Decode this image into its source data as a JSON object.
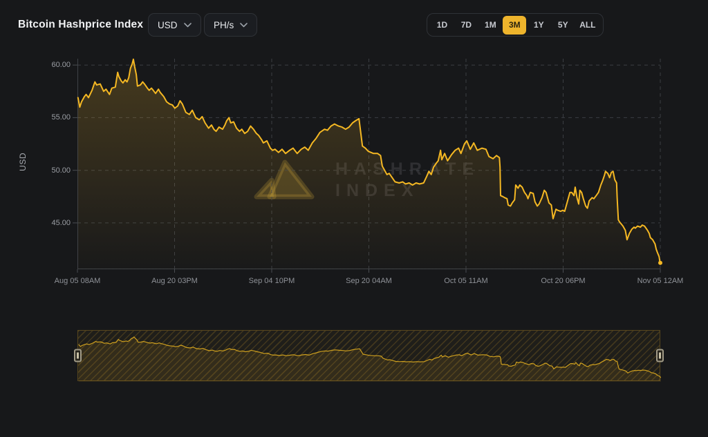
{
  "header": {
    "title": "Bitcoin Hashprice Index",
    "currency_dropdown": {
      "value": "USD",
      "icon": "chevron-down-icon"
    },
    "unit_dropdown": {
      "value": "PH/s",
      "icon": "chevron-down-icon"
    },
    "range_buttons": [
      {
        "label": "1D",
        "active": false
      },
      {
        "label": "7D",
        "active": false
      },
      {
        "label": "1M",
        "active": false
      },
      {
        "label": "3M",
        "active": true
      },
      {
        "label": "1Y",
        "active": false
      },
      {
        "label": "5Y",
        "active": false
      },
      {
        "label": "ALL",
        "active": false
      }
    ]
  },
  "watermark": {
    "line1": "HASHRATE",
    "line2": "INDEX",
    "logo": "hashrate-index-logo"
  },
  "colors": {
    "page_bg": "#17181A",
    "accent": "#EEB42C",
    "line": "#F5B823",
    "area_fill_top": "rgba(238,180,44,0.22)",
    "area_fill_bottom": "rgba(238,180,44,0.01)",
    "grid": "#3B3E43",
    "text_primary": "#F2F3F5",
    "text_muted": "#9B9EA4",
    "range_active_text": "#2A230F"
  },
  "chart_data": {
    "type": "line",
    "title": "Bitcoin Hashprice Index",
    "ylabel": "USD",
    "ylim": [
      40.6,
      60.6
    ],
    "grid": true,
    "y_ticks": [
      {
        "value": 60,
        "label": "60.00"
      },
      {
        "value": 55,
        "label": "55.00"
      },
      {
        "value": 50,
        "label": "50.00"
      },
      {
        "value": 45,
        "label": "45.00"
      }
    ],
    "x_ticks": [
      "Aug 05 08AM",
      "Aug 20 03PM",
      "Sep 04 10PM",
      "Sep 20 04AM",
      "Oct 05 11AM",
      "Oct 20 06PM",
      "Nov 05 12AM"
    ],
    "end_marker": true,
    "series": [
      {
        "name": "hashprice-usd-per-phs",
        "points": [
          [
            0.001,
            56.9
          ],
          [
            0.004,
            56.0
          ],
          [
            0.007,
            56.5
          ],
          [
            0.012,
            57.0
          ],
          [
            0.015,
            57.2
          ],
          [
            0.019,
            56.9
          ],
          [
            0.025,
            57.6
          ],
          [
            0.03,
            58.4
          ],
          [
            0.033,
            58.1
          ],
          [
            0.039,
            58.2
          ],
          [
            0.045,
            57.5
          ],
          [
            0.049,
            57.7
          ],
          [
            0.055,
            57.2
          ],
          [
            0.059,
            57.8
          ],
          [
            0.065,
            57.9
          ],
          [
            0.069,
            59.3
          ],
          [
            0.071,
            58.9
          ],
          [
            0.075,
            58.5
          ],
          [
            0.078,
            58.3
          ],
          [
            0.082,
            58.6
          ],
          [
            0.085,
            58.4
          ],
          [
            0.088,
            58.8
          ],
          [
            0.091,
            59.7
          ],
          [
            0.094,
            60.1
          ],
          [
            0.096,
            60.55
          ],
          [
            0.098,
            59.9
          ],
          [
            0.101,
            59.1
          ],
          [
            0.103,
            58.0
          ],
          [
            0.108,
            58.1
          ],
          [
            0.112,
            58.4
          ],
          [
            0.115,
            58.2
          ],
          [
            0.12,
            57.8
          ],
          [
            0.123,
            57.6
          ],
          [
            0.127,
            57.8
          ],
          [
            0.13,
            57.6
          ],
          [
            0.134,
            57.3
          ],
          [
            0.139,
            57.7
          ],
          [
            0.142,
            57.4
          ],
          [
            0.148,
            57.0
          ],
          [
            0.153,
            56.5
          ],
          [
            0.158,
            56.3
          ],
          [
            0.163,
            56.2
          ],
          [
            0.167,
            55.9
          ],
          [
            0.172,
            56.1
          ],
          [
            0.176,
            56.6
          ],
          [
            0.18,
            56.3
          ],
          [
            0.186,
            55.5
          ],
          [
            0.192,
            55.3
          ],
          [
            0.197,
            55.7
          ],
          [
            0.203,
            55.0
          ],
          [
            0.209,
            54.8
          ],
          [
            0.214,
            55.1
          ],
          [
            0.219,
            54.5
          ],
          [
            0.225,
            54.0
          ],
          [
            0.23,
            54.3
          ],
          [
            0.234,
            53.9
          ],
          [
            0.238,
            53.7
          ],
          [
            0.243,
            54.1
          ],
          [
            0.249,
            53.9
          ],
          [
            0.253,
            54.3
          ],
          [
            0.256,
            54.7
          ],
          [
            0.26,
            55.0
          ],
          [
            0.263,
            54.5
          ],
          [
            0.268,
            54.6
          ],
          [
            0.273,
            54.0
          ],
          [
            0.278,
            53.7
          ],
          [
            0.282,
            53.9
          ],
          [
            0.287,
            53.5
          ],
          [
            0.292,
            53.7
          ],
          [
            0.297,
            54.2
          ],
          [
            0.302,
            53.9
          ],
          [
            0.307,
            53.5
          ],
          [
            0.311,
            53.3
          ],
          [
            0.316,
            52.9
          ],
          [
            0.319,
            52.6
          ],
          [
            0.325,
            52.8
          ],
          [
            0.331,
            52.1
          ],
          [
            0.335,
            51.9
          ],
          [
            0.339,
            52.0
          ],
          [
            0.345,
            51.7
          ],
          [
            0.351,
            52.0
          ],
          [
            0.357,
            51.6
          ],
          [
            0.364,
            51.9
          ],
          [
            0.37,
            52.1
          ],
          [
            0.377,
            51.6
          ],
          [
            0.384,
            52.0
          ],
          [
            0.39,
            52.2
          ],
          [
            0.396,
            51.9
          ],
          [
            0.403,
            52.6
          ],
          [
            0.409,
            53.0
          ],
          [
            0.416,
            53.6
          ],
          [
            0.424,
            53.9
          ],
          [
            0.429,
            53.8
          ],
          [
            0.435,
            54.2
          ],
          [
            0.441,
            54.4
          ],
          [
            0.448,
            54.2
          ],
          [
            0.454,
            54.1
          ],
          [
            0.46,
            53.9
          ],
          [
            0.466,
            54.1
          ],
          [
            0.472,
            54.5
          ],
          [
            0.477,
            54.7
          ],
          [
            0.483,
            54.9
          ],
          [
            0.486,
            53.6
          ],
          [
            0.489,
            52.3
          ],
          [
            0.494,
            52.1
          ],
          [
            0.499,
            51.8
          ],
          [
            0.508,
            51.6
          ],
          [
            0.515,
            51.6
          ],
          [
            0.52,
            51.4
          ],
          [
            0.523,
            50.4
          ],
          [
            0.528,
            49.9
          ],
          [
            0.531,
            49.6
          ],
          [
            0.535,
            49.7
          ],
          [
            0.54,
            49.3
          ],
          [
            0.545,
            48.9
          ],
          [
            0.552,
            48.8
          ],
          [
            0.558,
            48.9
          ],
          [
            0.563,
            48.7
          ],
          [
            0.569,
            48.8
          ],
          [
            0.575,
            48.6
          ],
          [
            0.581,
            48.8
          ],
          [
            0.587,
            48.7
          ],
          [
            0.594,
            48.8
          ],
          [
            0.599,
            49.4
          ],
          [
            0.603,
            49.9
          ],
          [
            0.607,
            49.6
          ],
          [
            0.611,
            50.3
          ],
          [
            0.616,
            50.7
          ],
          [
            0.619,
            50.9
          ],
          [
            0.623,
            51.9
          ],
          [
            0.625,
            51.0
          ],
          [
            0.63,
            51.6
          ],
          [
            0.635,
            50.9
          ],
          [
            0.642,
            51.5
          ],
          [
            0.648,
            51.9
          ],
          [
            0.654,
            52.1
          ],
          [
            0.658,
            51.6
          ],
          [
            0.664,
            52.5
          ],
          [
            0.668,
            52.8
          ],
          [
            0.674,
            52.0
          ],
          [
            0.68,
            52.6
          ],
          [
            0.686,
            51.9
          ],
          [
            0.694,
            52.1
          ],
          [
            0.701,
            52.0
          ],
          [
            0.706,
            51.3
          ],
          [
            0.713,
            51.1
          ],
          [
            0.719,
            51.4
          ],
          [
            0.724,
            51.2
          ],
          [
            0.725,
            50.3
          ],
          [
            0.726,
            47.6
          ],
          [
            0.73,
            47.5
          ],
          [
            0.733,
            47.4
          ],
          [
            0.737,
            47.3
          ],
          [
            0.739,
            46.7
          ],
          [
            0.743,
            46.6
          ],
          [
            0.746,
            46.9
          ],
          [
            0.75,
            47.2
          ],
          [
            0.752,
            48.6
          ],
          [
            0.756,
            48.3
          ],
          [
            0.759,
            48.6
          ],
          [
            0.763,
            48.4
          ],
          [
            0.767,
            47.9
          ],
          [
            0.771,
            47.6
          ],
          [
            0.773,
            47.3
          ],
          [
            0.777,
            47.9
          ],
          [
            0.782,
            47.8
          ],
          [
            0.785,
            47.0
          ],
          [
            0.789,
            46.6
          ],
          [
            0.792,
            46.8
          ],
          [
            0.797,
            47.4
          ],
          [
            0.801,
            48.1
          ],
          [
            0.804,
            47.9
          ],
          [
            0.809,
            46.9
          ],
          [
            0.813,
            46.7
          ],
          [
            0.816,
            45.4
          ],
          [
            0.821,
            46.3
          ],
          [
            0.824,
            46.2
          ],
          [
            0.829,
            46.1
          ],
          [
            0.833,
            46.2
          ],
          [
            0.836,
            46.1
          ],
          [
            0.84,
            46.9
          ],
          [
            0.845,
            47.9
          ],
          [
            0.848,
            47.9
          ],
          [
            0.852,
            47.6
          ],
          [
            0.854,
            48.4
          ],
          [
            0.857,
            47.4
          ],
          [
            0.86,
            46.8
          ],
          [
            0.862,
            48.1
          ],
          [
            0.865,
            47.9
          ],
          [
            0.868,
            47.3
          ],
          [
            0.872,
            46.6
          ],
          [
            0.875,
            46.4
          ],
          [
            0.878,
            47.1
          ],
          [
            0.883,
            47.4
          ],
          [
            0.886,
            47.3
          ],
          [
            0.89,
            47.6
          ],
          [
            0.894,
            47.9
          ],
          [
            0.898,
            48.6
          ],
          [
            0.901,
            49.0
          ],
          [
            0.904,
            49.5
          ],
          [
            0.906,
            49.9
          ],
          [
            0.91,
            49.7
          ],
          [
            0.913,
            49.3
          ],
          [
            0.916,
            49.8
          ],
          [
            0.919,
            49.9
          ],
          [
            0.922,
            49.1
          ],
          [
            0.925,
            48.8
          ],
          [
            0.926,
            47.4
          ],
          [
            0.928,
            45.3
          ],
          [
            0.93,
            45.1
          ],
          [
            0.933,
            44.9
          ],
          [
            0.936,
            44.7
          ],
          [
            0.94,
            44.3
          ],
          [
            0.943,
            43.4
          ],
          [
            0.947,
            44.0
          ],
          [
            0.951,
            44.4
          ],
          [
            0.955,
            44.6
          ],
          [
            0.957,
            44.5
          ],
          [
            0.961,
            44.7
          ],
          [
            0.966,
            44.6
          ],
          [
            0.969,
            44.8
          ],
          [
            0.973,
            44.7
          ],
          [
            0.978,
            44.3
          ],
          [
            0.981,
            44.0
          ],
          [
            0.983,
            43.6
          ],
          [
            0.987,
            43.4
          ],
          [
            0.991,
            43.0
          ],
          [
            0.993,
            42.5
          ],
          [
            0.995,
            42.2
          ],
          [
            0.998,
            41.8
          ],
          [
            0.999,
            41.4
          ],
          [
            1.0,
            41.2
          ]
        ]
      }
    ]
  },
  "navigator": {
    "shows": "full-series-overview",
    "selection": "full-range",
    "handles": [
      "left",
      "right"
    ]
  }
}
